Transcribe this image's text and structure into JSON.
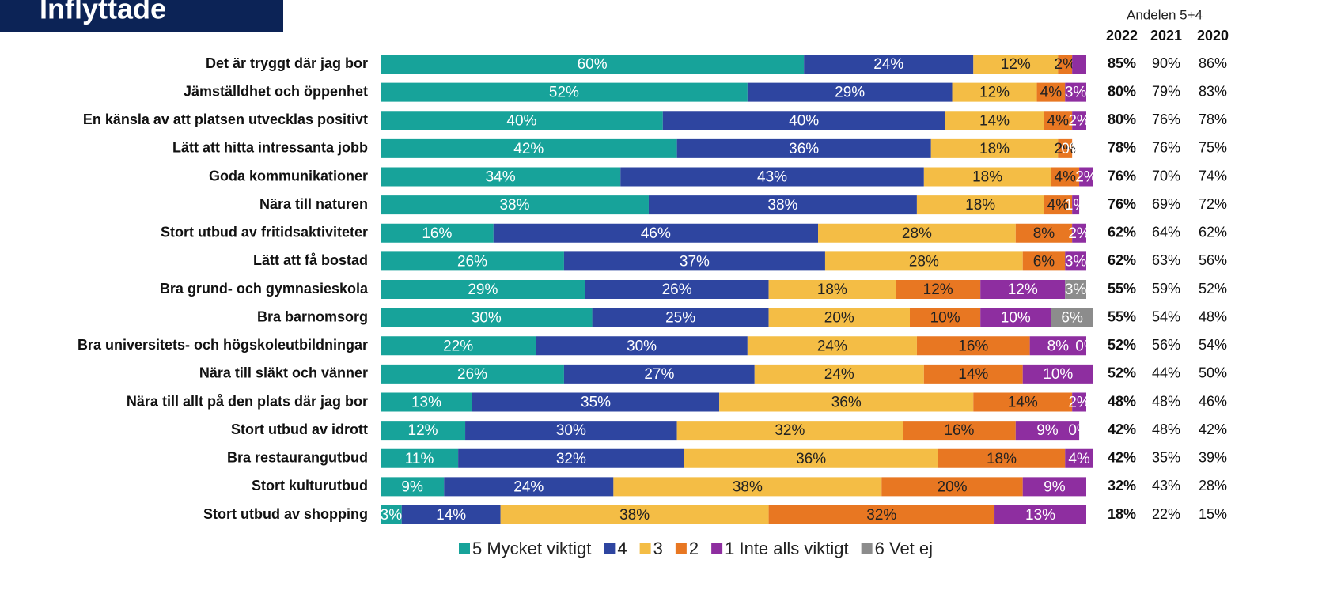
{
  "chart_data": {
    "type": "stacked-bar-horizontal",
    "title": "Inflyttade",
    "xlim": [
      0,
      100
    ],
    "categories": [
      "Det är tryggt där jag bor",
      "Jämställdhet och öppenhet",
      "En känsla av att platsen utvecklas positivt",
      "Lätt att hitta intressanta jobb",
      "Goda kommunikationer",
      "Nära till naturen",
      "Stort utbud av fritidsaktiviteter",
      "Lätt att få bostad",
      "Bra grund- och gymnasieskola",
      "Bra barnomsorg",
      "Bra universitets- och högskoleutbildningar",
      "Nära till släkt och vänner",
      "Nära till allt på den plats där jag bor",
      "Stort utbud av idrott",
      "Bra restaurangutbud",
      "Stort kulturutbud",
      "Stort utbud av shopping"
    ],
    "series": [
      {
        "name": "5 Mycket viktigt",
        "color": "#17a39a",
        "label_color": "#ffffff",
        "values": [
          60,
          52,
          40,
          42,
          34,
          38,
          16,
          26,
          29,
          30,
          22,
          26,
          13,
          12,
          11,
          9,
          3
        ],
        "value_labels": [
          "60%",
          "52%",
          "40%",
          "42%",
          "34%",
          "38%",
          "16%",
          "26%",
          "29%",
          "30%",
          "22%",
          "26%",
          "13%",
          "12%",
          "11%",
          "9%",
          "3%"
        ]
      },
      {
        "name": "4",
        "color": "#2e45a0",
        "label_color": "#ffffff",
        "values": [
          24,
          29,
          40,
          36,
          43,
          38,
          46,
          37,
          26,
          25,
          30,
          27,
          35,
          30,
          32,
          24,
          14
        ],
        "value_labels": [
          "24%",
          "29%",
          "40%",
          "36%",
          "43%",
          "38%",
          "46%",
          "37%",
          "26%",
          "25%",
          "30%",
          "27%",
          "35%",
          "30%",
          "32%",
          "24%",
          "14%"
        ]
      },
      {
        "name": "3",
        "color": "#f4bd45",
        "label_color": "#222222",
        "values": [
          12,
          12,
          14,
          18,
          18,
          18,
          28,
          28,
          18,
          20,
          24,
          24,
          36,
          32,
          36,
          38,
          38
        ],
        "value_labels": [
          "12%",
          "12%",
          "14%",
          "18%",
          "18%",
          "18%",
          "28%",
          "28%",
          "18%",
          "20%",
          "24%",
          "24%",
          "36%",
          "32%",
          "36%",
          "38%",
          "38%"
        ]
      },
      {
        "name": "2",
        "color": "#e87722",
        "label_color": "#222222",
        "values": [
          2,
          4,
          4,
          2,
          4,
          4,
          8,
          6,
          12,
          10,
          16,
          14,
          14,
          16,
          18,
          20,
          32
        ],
        "value_labels": [
          "2%",
          "4%",
          "4%",
          "2%",
          "4%",
          "4%",
          "8%",
          "6%",
          "12%",
          "10%",
          "16%",
          "14%",
          "14%",
          "16%",
          "18%",
          "20%",
          "32%"
        ]
      },
      {
        "name": "1 Inte alls viktigt",
        "color": "#8e2ea0",
        "label_color": "#ffffff",
        "values": [
          2,
          3,
          2,
          0,
          2,
          1,
          2,
          3,
          12,
          10,
          8,
          10,
          2,
          9,
          4,
          9,
          13
        ],
        "value_labels": [
          null,
          "3%",
          "2%",
          "0%",
          "2%",
          "1%",
          "2%",
          "3%",
          "12%",
          "10%",
          "8%",
          "10%",
          "2%",
          "9%",
          "4%",
          "9%",
          "13%"
        ]
      },
      {
        "name": "6 Vet ej",
        "color": "#8c8c8c",
        "label_color": "#ffffff",
        "values": [
          0,
          0,
          0,
          0,
          0,
          0,
          0,
          0,
          3,
          6,
          0,
          0,
          0,
          0,
          0,
          0,
          0
        ],
        "value_labels": [
          null,
          null,
          null,
          null,
          null,
          null,
          null,
          null,
          "3%",
          "6%",
          "0%",
          null,
          null,
          "0%",
          null,
          null,
          null
        ]
      }
    ],
    "side_table": {
      "header": "Andelen 5+4",
      "columns": [
        {
          "year": "2022",
          "bold": true,
          "values": [
            "85%",
            "80%",
            "80%",
            "78%",
            "76%",
            "76%",
            "62%",
            "62%",
            "55%",
            "55%",
            "52%",
            "52%",
            "48%",
            "42%",
            "42%",
            "32%",
            "18%"
          ]
        },
        {
          "year": "2021",
          "bold": false,
          "values": [
            "90%",
            "79%",
            "76%",
            "76%",
            "70%",
            "69%",
            "64%",
            "63%",
            "59%",
            "54%",
            "56%",
            "44%",
            "48%",
            "48%",
            "35%",
            "43%",
            "22%"
          ]
        },
        {
          "year": "2020",
          "bold": false,
          "values": [
            "86%",
            "83%",
            "78%",
            "75%",
            "74%",
            "72%",
            "62%",
            "56%",
            "52%",
            "48%",
            "54%",
            "50%",
            "46%",
            "42%",
            "39%",
            "28%",
            "15%"
          ]
        }
      ]
    }
  }
}
